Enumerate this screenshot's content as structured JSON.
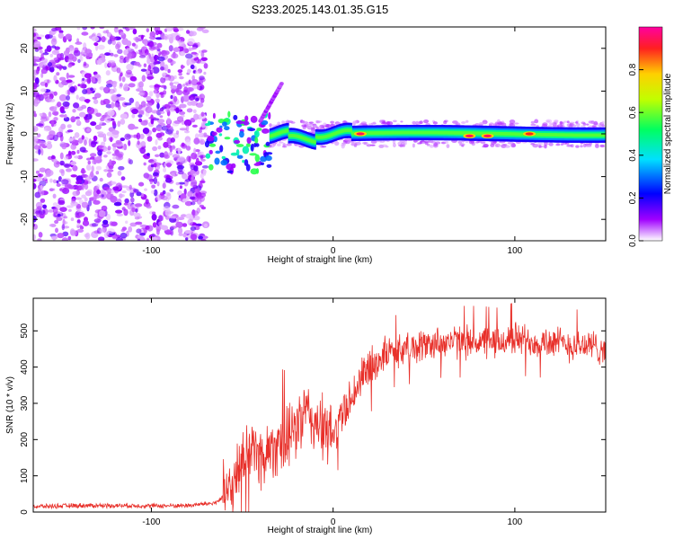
{
  "figure_title": "S233.2025.143.01.35.G15",
  "colorbar": {
    "label": "Normalized spectral amplitude",
    "ticks": [
      "0.0",
      "0.2",
      "0.4",
      "0.6",
      "0.8"
    ],
    "range": [
      0.0,
      1.0
    ]
  },
  "chart_data": [
    {
      "type": "heatmap",
      "title": "S233.2025.143.01.35.G15",
      "xlabel": "Height of straight line (km)",
      "ylabel": "Frequency (Hz)",
      "xlim": [
        -165,
        150
      ],
      "ylim": [
        -25,
        25
      ],
      "x_ticks": [
        "-100",
        "0",
        "100"
      ],
      "y_ticks": [
        "20",
        "10",
        "0",
        "-10",
        "-20"
      ],
      "colormap": "rainbow (white-purple-blue-cyan-green-yellow-red-magenta)",
      "regions": [
        {
          "name": "noise",
          "x_range": [
            -165,
            -70
          ],
          "freq_range": [
            -25,
            25
          ],
          "amplitude": 0.1
        },
        {
          "name": "transition",
          "x_range": [
            -70,
            -35
          ],
          "freq_range": [
            -9,
            5
          ],
          "amplitude": 0.5
        },
        {
          "name": "signal_band",
          "x_range": [
            -35,
            150
          ],
          "freq_center": 0,
          "freq_halfwidth": 1.5,
          "amplitude": 0.5
        },
        {
          "name": "spur",
          "x_range": [
            -40,
            -28
          ],
          "freq_range": [
            3,
            12
          ],
          "amplitude": 0.15
        }
      ],
      "peaks": [
        {
          "x": 15,
          "freq": 0,
          "amplitude": 0.95
        },
        {
          "x": 75,
          "freq": -0.5,
          "amplitude": 0.95
        },
        {
          "x": 85,
          "freq": -0.5,
          "amplitude": 0.95
        },
        {
          "x": 108,
          "freq": 0,
          "amplitude": 0.9
        }
      ]
    },
    {
      "type": "line",
      "xlabel": "Height of straight line (km)",
      "ylabel": "SNR (10 * v/v)",
      "xlim": [
        -165,
        150
      ],
      "ylim": [
        0,
        590
      ],
      "x_ticks": [
        "-100",
        "0",
        "100"
      ],
      "y_ticks": [
        "0",
        "100",
        "200",
        "300",
        "400",
        "500"
      ],
      "color": "#e8302a",
      "series": [
        {
          "x": [
            -165,
            -140,
            -120,
            -100,
            -80,
            -65,
            -55,
            -50,
            -45,
            -40,
            -35,
            -30,
            -25,
            -20,
            -15,
            -10,
            -5,
            0,
            5,
            10,
            15,
            20,
            25,
            30,
            40,
            50,
            60,
            70,
            80,
            90,
            100,
            110,
            120,
            130,
            140,
            150
          ],
          "values": [
            15,
            18,
            18,
            17,
            18,
            25,
            60,
            150,
            180,
            150,
            170,
            200,
            190,
            240,
            270,
            250,
            220,
            210,
            270,
            320,
            360,
            400,
            420,
            440,
            450,
            460,
            470,
            470,
            470,
            465,
            480,
            470,
            470,
            460,
            460,
            450
          ]
        }
      ]
    }
  ]
}
